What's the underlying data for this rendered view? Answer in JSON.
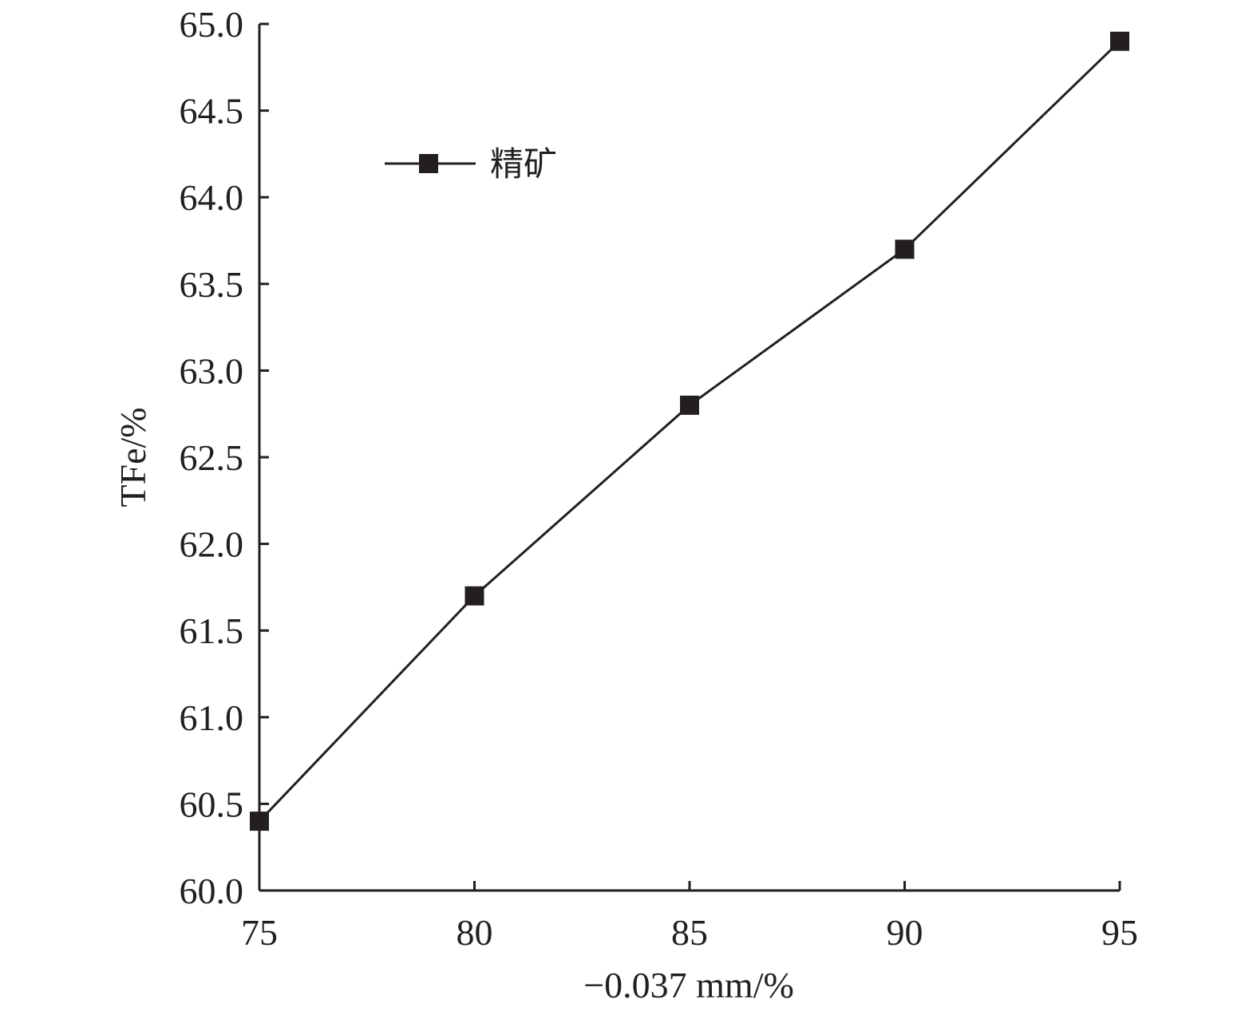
{
  "chart_data": {
    "type": "line",
    "title": "",
    "xlabel": "−0.037 mm/%",
    "ylabel": "TFe/%",
    "xlim": [
      75,
      95
    ],
    "ylim": [
      60.0,
      65.0
    ],
    "x_ticks": [
      "75",
      "80",
      "85",
      "90",
      "95"
    ],
    "y_ticks": [
      "60.0",
      "60.5",
      "61.0",
      "61.5",
      "62.0",
      "62.5",
      "63.0",
      "63.5",
      "64.0",
      "64.5",
      "65.0"
    ],
    "grid": false,
    "legend_position": "top-left",
    "series": [
      {
        "name": "精矿",
        "marker": "square",
        "color": "#231f20",
        "x": [
          75,
          80,
          85,
          90,
          95
        ],
        "y": [
          60.4,
          61.7,
          62.8,
          63.7,
          64.9
        ]
      }
    ]
  }
}
